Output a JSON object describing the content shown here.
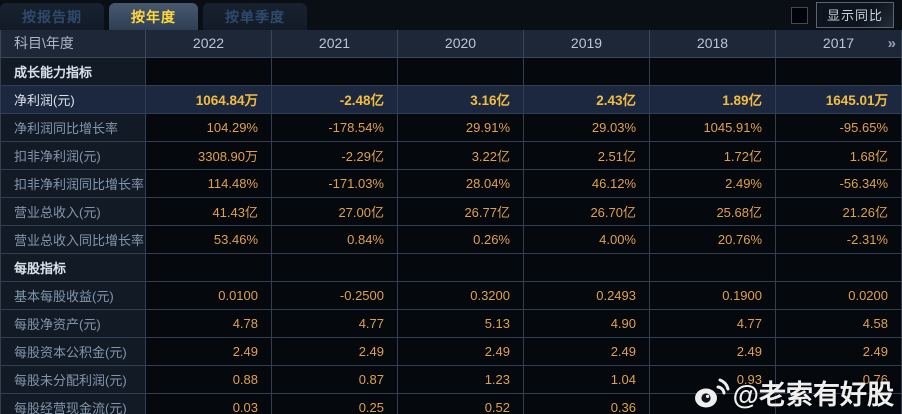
{
  "tabs": [
    {
      "label": "按报告期",
      "active": false
    },
    {
      "label": "按年度",
      "active": true
    },
    {
      "label": "按单季度",
      "active": false
    }
  ],
  "controls": {
    "show_yoy_label": "显示同比",
    "checkbox_checked": false,
    "more_icon": "»"
  },
  "watermark": {
    "text": "@老索有好股",
    "icon": "weibo-icon"
  },
  "colors": {
    "accent_yellow": "#ffd83d",
    "value_orange": "#dfa04f",
    "highlight_gold": "#f5bc42",
    "header_bg": "#1d2737",
    "highlight_row_bg": "#1c2840"
  },
  "table": {
    "corner_label": "科目\\年度",
    "years": [
      "2022",
      "2021",
      "2020",
      "2019",
      "2018",
      "2017"
    ],
    "rows": [
      {
        "type": "section",
        "label": "成长能力指标",
        "values": [
          "",
          "",
          "",
          "",
          "",
          ""
        ]
      },
      {
        "type": "highlight",
        "label": "净利润(元)",
        "values": [
          "1064.84万",
          "-2.48亿",
          "3.16亿",
          "2.43亿",
          "1.89亿",
          "1645.01万"
        ]
      },
      {
        "type": "data",
        "label": "净利润同比增长率",
        "values": [
          "104.29%",
          "-178.54%",
          "29.91%",
          "29.03%",
          "1045.91%",
          "-95.65%"
        ]
      },
      {
        "type": "data",
        "label": "扣非净利润(元)",
        "values": [
          "3308.90万",
          "-2.29亿",
          "3.22亿",
          "2.51亿",
          "1.72亿",
          "1.68亿"
        ]
      },
      {
        "type": "data",
        "label": "扣非净利润同比增长率",
        "values": [
          "114.48%",
          "-171.03%",
          "28.04%",
          "46.12%",
          "2.49%",
          "-56.34%"
        ]
      },
      {
        "type": "data",
        "label": "营业总收入(元)",
        "values": [
          "41.43亿",
          "27.00亿",
          "26.77亿",
          "26.70亿",
          "25.68亿",
          "21.26亿"
        ]
      },
      {
        "type": "data",
        "label": "营业总收入同比增长率",
        "values": [
          "53.46%",
          "0.84%",
          "0.26%",
          "4.00%",
          "20.76%",
          "-2.31%"
        ]
      },
      {
        "type": "section",
        "label": "每股指标",
        "values": [
          "",
          "",
          "",
          "",
          "",
          ""
        ]
      },
      {
        "type": "data",
        "label": "基本每股收益(元)",
        "values": [
          "0.0100",
          "-0.2500",
          "0.3200",
          "0.2493",
          "0.1900",
          "0.0200"
        ]
      },
      {
        "type": "data",
        "label": "每股净资产(元)",
        "values": [
          "4.78",
          "4.77",
          "5.13",
          "4.90",
          "4.77",
          "4.58"
        ]
      },
      {
        "type": "data",
        "label": "每股资本公积金(元)",
        "values": [
          "2.49",
          "2.49",
          "2.49",
          "2.49",
          "2.49",
          "2.49"
        ]
      },
      {
        "type": "data",
        "label": "每股未分配利润(元)",
        "values": [
          "0.88",
          "0.87",
          "1.23",
          "1.04",
          "0.93",
          "0.76"
        ]
      },
      {
        "type": "data",
        "label": "每股经营现金流(元)",
        "values": [
          "0.03",
          "0.25",
          "0.52",
          "0.36",
          "",
          ""
        ]
      }
    ]
  }
}
